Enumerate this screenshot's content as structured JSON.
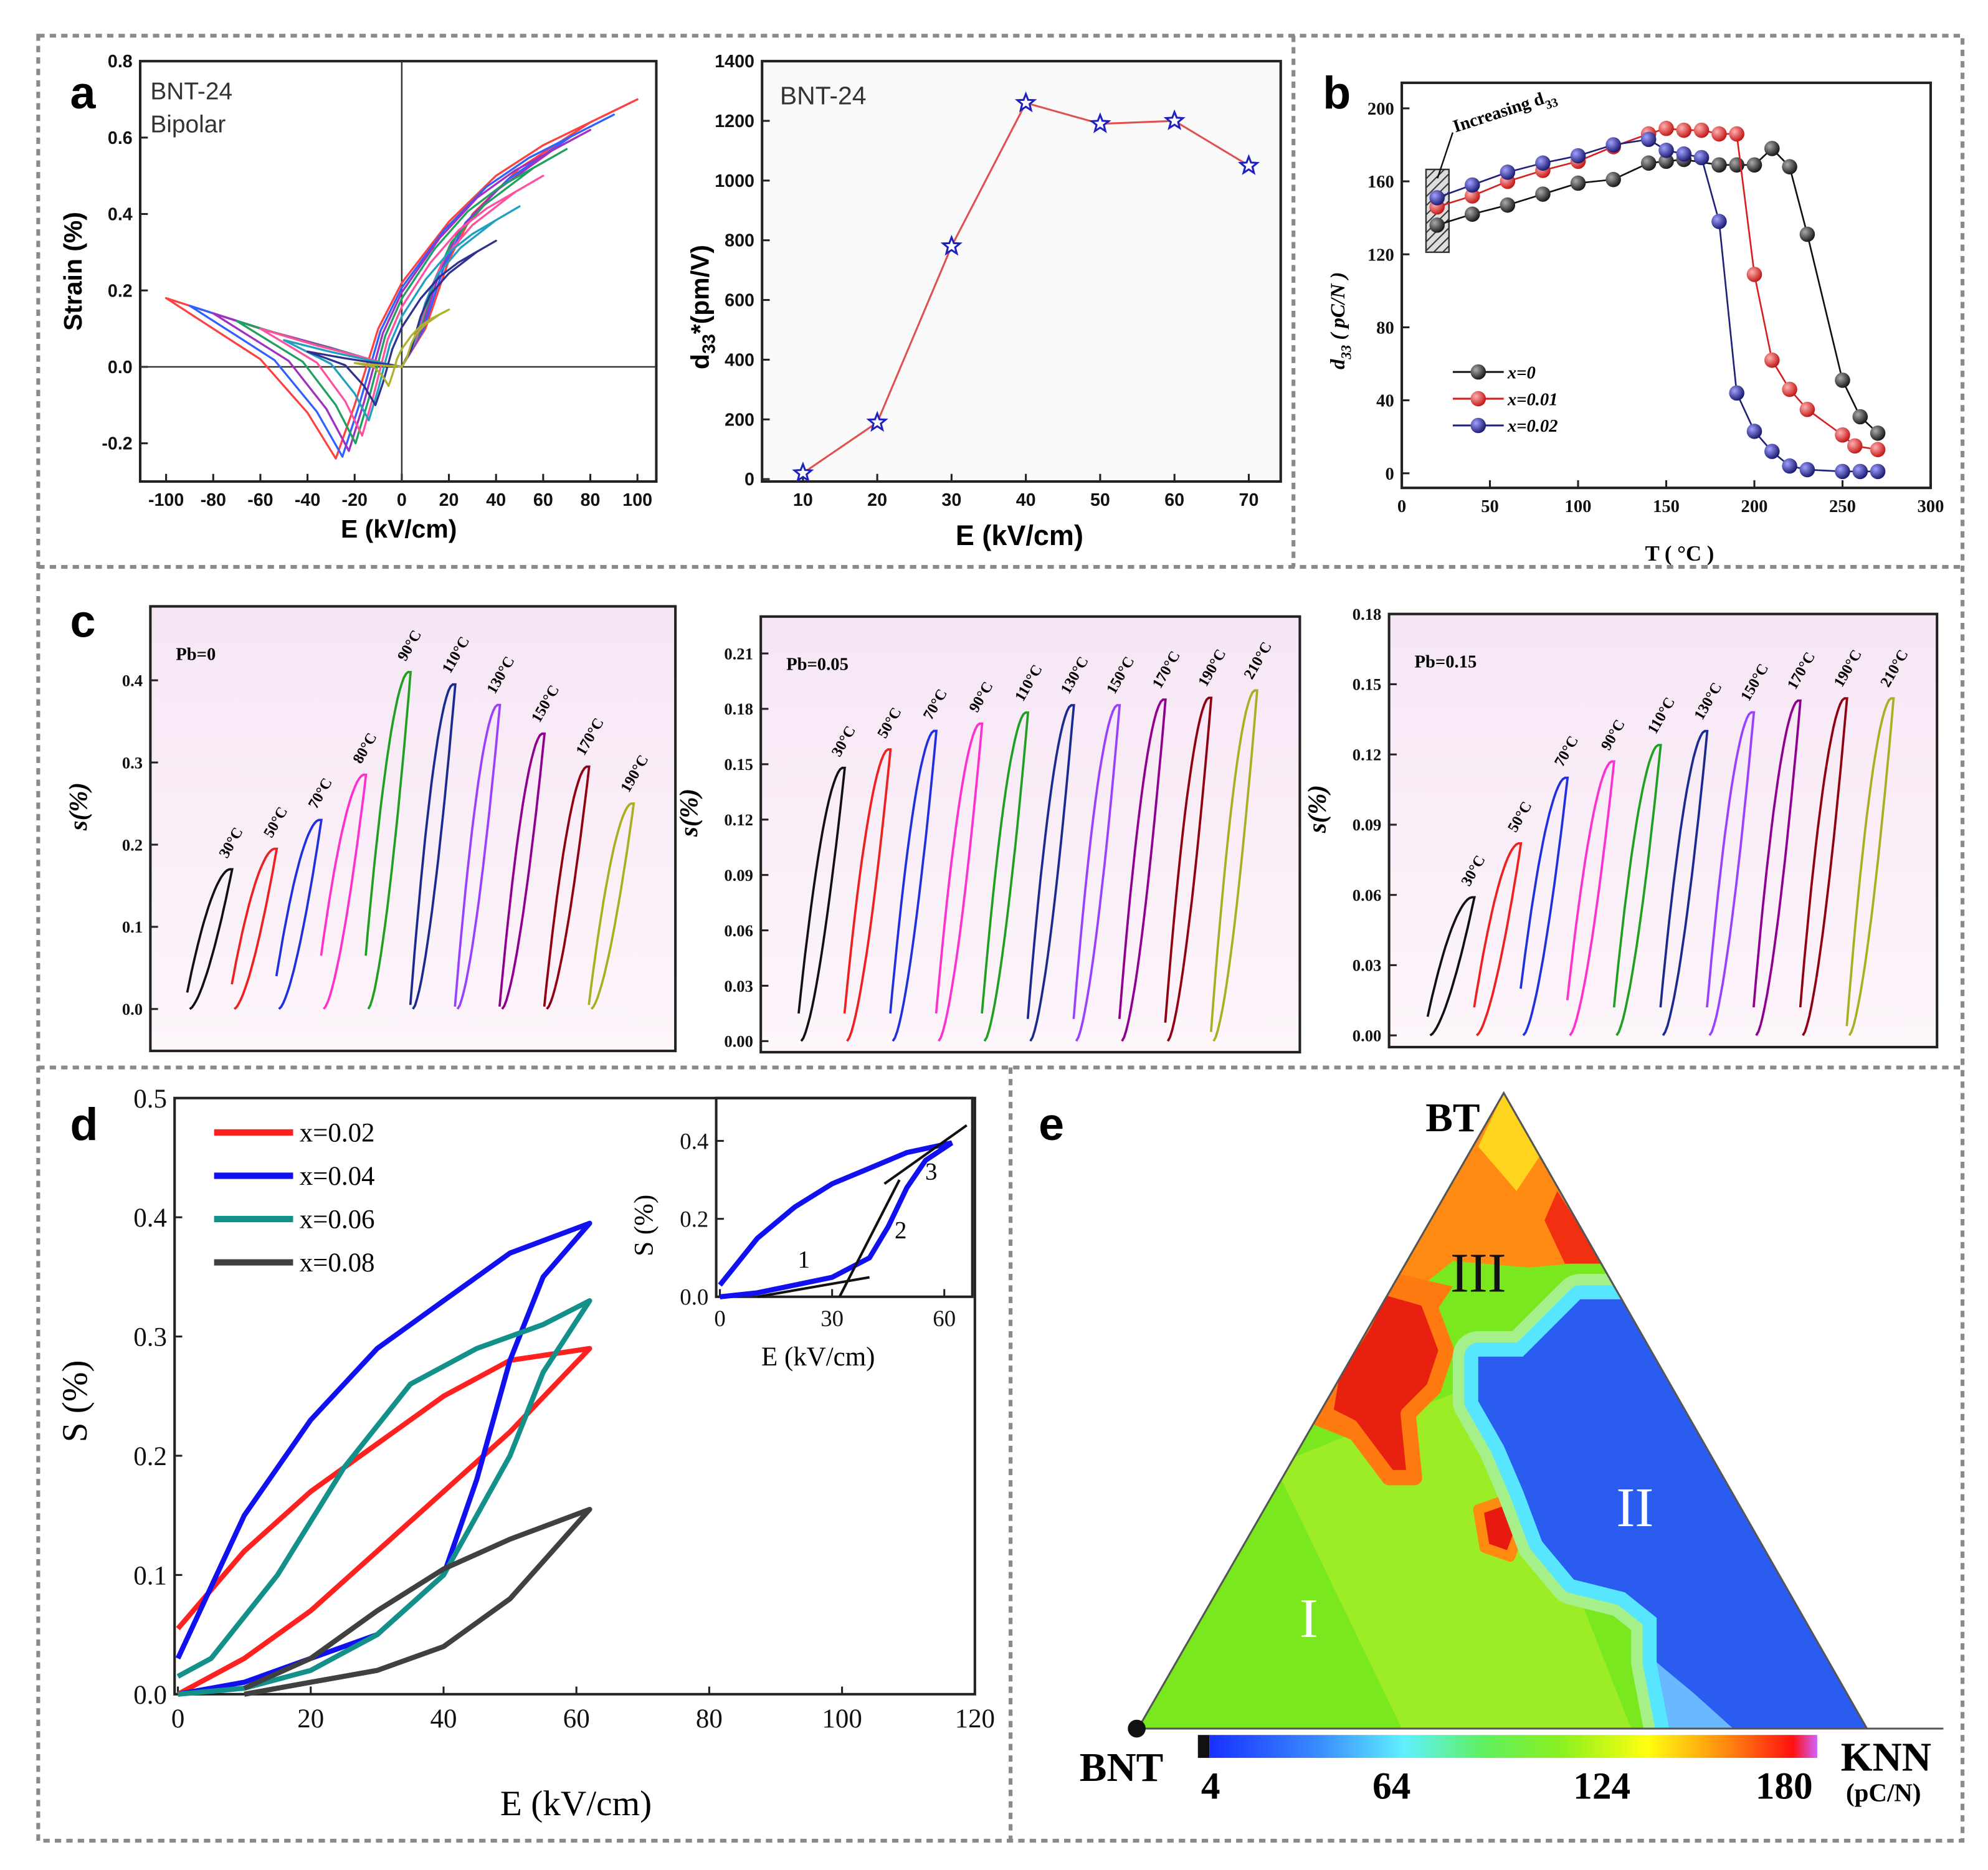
{
  "panel_letters": [
    "a",
    "b",
    "c",
    "d",
    "e"
  ],
  "colors": {
    "border": "#8a8a8a",
    "frame": "#222222"
  },
  "chart_data": [
    {
      "id": "a1",
      "panel": "a",
      "type": "line",
      "annotations": [
        "BNT-24",
        "Bipolar"
      ],
      "xlabel": "E (kV/cm)",
      "ylabel": "Strain (%)",
      "xlim": [
        -111,
        108
      ],
      "ylim": [
        -0.3,
        0.8
      ],
      "xticks": [
        -100,
        -80,
        -60,
        -40,
        -20,
        0,
        20,
        40,
        60,
        80,
        100
      ],
      "yticks": [
        -0.2,
        0.0,
        0.2,
        0.4,
        0.6,
        0.8
      ],
      "ytick_labels": [
        "-0.2",
        "0.0",
        "0.2",
        "0.4",
        "0.6",
        "0.8"
      ],
      "series": [
        {
          "Emax": 100,
          "Spos": 0.7,
          "Sneg": 0.18,
          "Smin": -0.24,
          "color": "#ff4040"
        },
        {
          "Emax": 90,
          "Spos": 0.66,
          "Sneg": 0.16,
          "Smin": -0.235,
          "color": "#3060ff"
        },
        {
          "Emax": 80,
          "Spos": 0.62,
          "Sneg": 0.14,
          "Smin": -0.22,
          "color": "#a030c0"
        },
        {
          "Emax": 70,
          "Spos": 0.57,
          "Sneg": 0.12,
          "Smin": -0.2,
          "color": "#20a060"
        },
        {
          "Emax": 60,
          "Spos": 0.5,
          "Sneg": 0.1,
          "Smin": -0.18,
          "color": "#ff50a0"
        },
        {
          "Emax": 50,
          "Spos": 0.42,
          "Sneg": 0.07,
          "Smin": -0.14,
          "color": "#20a0c0"
        },
        {
          "Emax": 40,
          "Spos": 0.33,
          "Sneg": 0.04,
          "Smin": -0.1,
          "color": "#303090"
        },
        {
          "Emax": 20,
          "Spos": 0.15,
          "Sneg": 0.01,
          "Smin": -0.05,
          "color": "#b0b030"
        }
      ]
    },
    {
      "id": "a2",
      "panel": "a",
      "type": "line",
      "annotations": [
        "BNT-24"
      ],
      "xlabel": "E (kV/cm)",
      "ylabel": {
        "main": "d",
        "sub": "33",
        "rest": "*(pm/V)"
      },
      "xlim": [
        4.5,
        74.3
      ],
      "ylim": [
        -8,
        1400
      ],
      "xticks": [
        10,
        20,
        30,
        40,
        50,
        60,
        70
      ],
      "yticks": [
        0,
        200,
        400,
        600,
        800,
        1000,
        1200,
        1400
      ],
      "x": [
        10,
        20,
        30,
        40,
        50,
        60,
        70
      ],
      "y": [
        20,
        190,
        780,
        1260,
        1190,
        1200,
        1050
      ],
      "line_color": "#e05050",
      "marker_color": "#2020c0"
    },
    {
      "id": "b",
      "panel": "b",
      "type": "line",
      "annotations": [
        {
          "main": "Increasing d",
          "sub": "33"
        }
      ],
      "xlabel": "T ( °C )",
      "ylabel": {
        "main": "d",
        "sub": "33",
        "rest": " ( pC/N )"
      },
      "xlim": [
        0,
        300
      ],
      "ylim": [
        -8,
        214
      ],
      "xticks": [
        0,
        50,
        100,
        150,
        200,
        250,
        300
      ],
      "yticks": [
        0,
        40,
        80,
        120,
        160,
        200
      ],
      "series": [
        {
          "name": "x=0",
          "color": "#111111",
          "x": [
            20,
            40,
            60,
            80,
            100,
            120,
            140,
            150,
            160,
            180,
            190,
            200,
            210,
            220,
            230,
            250,
            260,
            270
          ],
          "y": [
            136,
            142,
            147,
            153,
            159,
            161,
            170,
            171,
            172,
            169,
            169,
            169,
            178,
            168,
            131,
            51,
            31,
            22
          ]
        },
        {
          "name": "x=0.01",
          "color": "#d42020",
          "x": [
            20,
            40,
            60,
            80,
            100,
            120,
            140,
            150,
            160,
            170,
            180,
            190,
            200,
            210,
            220,
            230,
            250,
            257,
            270
          ],
          "y": [
            146,
            152,
            160,
            166,
            171,
            179,
            186,
            189,
            188,
            188,
            186,
            186,
            109,
            62,
            46,
            35,
            21,
            15,
            13
          ]
        },
        {
          "name": "x=0.02",
          "color": "#20207a",
          "x": [
            20,
            40,
            60,
            80,
            100,
            120,
            140,
            150,
            160,
            170,
            180,
            190,
            200,
            210,
            220,
            230,
            250,
            260,
            270
          ],
          "y": [
            151,
            158,
            165,
            170,
            174,
            180,
            183,
            177,
            175,
            173,
            138,
            44,
            23,
            12,
            4,
            2,
            1,
            1,
            1
          ]
        }
      ]
    },
    {
      "id": "c1",
      "panel": "c",
      "type": "line",
      "label": "Pb=0",
      "ylabel": "s(%)",
      "ylim": [
        -0.051,
        0.49
      ],
      "yticks": [
        0.0,
        0.1,
        0.2,
        0.3,
        0.4
      ],
      "ytick_labels": [
        "0.0",
        "0.1",
        "0.2",
        "0.3",
        "0.4"
      ],
      "loops": [
        {
          "label": "30°C",
          "peak": 0.17,
          "return_strain": 0.02,
          "color": "#111111"
        },
        {
          "label": "50°C",
          "peak": 0.195,
          "return_strain": 0.03,
          "color": "#ee2020"
        },
        {
          "label": "70°C",
          "peak": 0.23,
          "return_strain": 0.04,
          "color": "#2030e0"
        },
        {
          "label": "80°C",
          "peak": 0.285,
          "return_strain": 0.065,
          "color": "#ff30d0"
        },
        {
          "label": "90°C",
          "peak": 0.41,
          "return_strain": 0.065,
          "color": "#20a020"
        },
        {
          "label": "110°C",
          "peak": 0.395,
          "return_strain": 0.005,
          "color": "#1a2a90"
        },
        {
          "label": "130°C",
          "peak": 0.37,
          "return_strain": 0.003,
          "color": "#9a40ff"
        },
        {
          "label": "150°C",
          "peak": 0.335,
          "return_strain": 0.003,
          "color": "#900090"
        },
        {
          "label": "170°C",
          "peak": 0.295,
          "return_strain": 0.003,
          "color": "#900010"
        },
        {
          "label": "190°C",
          "peak": 0.25,
          "return_strain": 0.005,
          "color": "#a8b020"
        }
      ]
    },
    {
      "id": "c2",
      "panel": "c",
      "type": "line",
      "label": "Pb=0.05",
      "ylabel": "s(%)",
      "ylim": [
        -0.006,
        0.23
      ],
      "yticks": [
        0.0,
        0.03,
        0.06,
        0.09,
        0.12,
        0.15,
        0.18,
        0.21
      ],
      "ytick_labels": [
        "0.00",
        "0.03",
        "0.06",
        "0.09",
        "0.12",
        "0.15",
        "0.18",
        "0.21"
      ],
      "loops": [
        {
          "label": "30°C",
          "peak": 0.148,
          "return_strain": 0.015,
          "color": "#111111"
        },
        {
          "label": "50°C",
          "peak": 0.158,
          "return_strain": 0.015,
          "color": "#ee2020"
        },
        {
          "label": "70°C",
          "peak": 0.168,
          "return_strain": 0.015,
          "color": "#2030e0"
        },
        {
          "label": "90°C",
          "peak": 0.172,
          "return_strain": 0.015,
          "color": "#ff30d0"
        },
        {
          "label": "110°C",
          "peak": 0.178,
          "return_strain": 0.015,
          "color": "#20a020"
        },
        {
          "label": "130°C",
          "peak": 0.182,
          "return_strain": 0.012,
          "color": "#1a2a90"
        },
        {
          "label": "150°C",
          "peak": 0.182,
          "return_strain": 0.012,
          "color": "#9a40ff"
        },
        {
          "label": "170°C",
          "peak": 0.185,
          "return_strain": 0.012,
          "color": "#900090"
        },
        {
          "label": "190°C",
          "peak": 0.186,
          "return_strain": 0.01,
          "color": "#900010"
        },
        {
          "label": "210°C",
          "peak": 0.19,
          "return_strain": 0.005,
          "color": "#a8b020"
        }
      ]
    },
    {
      "id": "c3",
      "panel": "c",
      "type": "line",
      "label": "Pb=0.15",
      "ylabel": "s(%)",
      "ylim": [
        -0.005,
        0.18
      ],
      "yticks": [
        0.0,
        0.03,
        0.06,
        0.09,
        0.12,
        0.15,
        0.18
      ],
      "ytick_labels": [
        "0.00",
        "0.03",
        "0.06",
        "0.09",
        "0.12",
        "0.15",
        "0.18"
      ],
      "loops": [
        {
          "label": "30°C",
          "peak": 0.059,
          "return_strain": 0.008,
          "color": "#111111"
        },
        {
          "label": "50°C",
          "peak": 0.082,
          "return_strain": 0.012,
          "color": "#ee2020"
        },
        {
          "label": "70°C",
          "peak": 0.11,
          "return_strain": 0.02,
          "color": "#2030e0"
        },
        {
          "label": "90°C",
          "peak": 0.117,
          "return_strain": 0.015,
          "color": "#ff30d0"
        },
        {
          "label": "110°C",
          "peak": 0.124,
          "return_strain": 0.012,
          "color": "#20a020"
        },
        {
          "label": "130°C",
          "peak": 0.13,
          "return_strain": 0.012,
          "color": "#1a2a90"
        },
        {
          "label": "150°C",
          "peak": 0.138,
          "return_strain": 0.012,
          "color": "#9a40ff"
        },
        {
          "label": "170°C",
          "peak": 0.143,
          "return_strain": 0.012,
          "color": "#900090"
        },
        {
          "label": "190°C",
          "peak": 0.144,
          "return_strain": 0.012,
          "color": "#900010"
        },
        {
          "label": "210°C",
          "peak": 0.144,
          "return_strain": 0.004,
          "color": "#a8b020"
        }
      ]
    },
    {
      "id": "d",
      "panel": "d",
      "type": "line",
      "xlabel": "E (kV/cm)",
      "ylabel": "S (%)",
      "xlim": [
        -0.5,
        120
      ],
      "ylim": [
        0,
        0.5
      ],
      "xticks": [
        0,
        20,
        40,
        60,
        80,
        100,
        120
      ],
      "yticks": [
        0,
        0.1,
        0.2,
        0.3,
        0.4,
        0.5
      ],
      "ytick_labels": [
        "0.0",
        "0.1",
        "0.2",
        "0.3",
        "0.4",
        "0.5"
      ],
      "series": [
        {
          "name": "x=0.02",
          "color": "#ff2020",
          "upper": [
            [
              62,
              0.29
            ],
            [
              50,
              0.28
            ],
            [
              40,
              0.25
            ],
            [
              30,
              0.21
            ],
            [
              20,
              0.17
            ],
            [
              10,
              0.12
            ],
            [
              0,
              0.055
            ]
          ],
          "lower": [
            [
              0,
              0.0
            ],
            [
              10,
              0.03
            ],
            [
              20,
              0.07
            ],
            [
              30,
              0.12
            ],
            [
              40,
              0.17
            ],
            [
              50,
              0.22
            ],
            [
              62,
              0.29
            ]
          ]
        },
        {
          "name": "x=0.04",
          "color": "#1010f0",
          "upper": [
            [
              62,
              0.395
            ],
            [
              50,
              0.37
            ],
            [
              40,
              0.33
            ],
            [
              30,
              0.29
            ],
            [
              20,
              0.23
            ],
            [
              10,
              0.15
            ],
            [
              0,
              0.03
            ]
          ],
          "lower": [
            [
              0,
              0.0
            ],
            [
              10,
              0.01
            ],
            [
              20,
              0.03
            ],
            [
              30,
              0.05
            ],
            [
              40,
              0.1
            ],
            [
              45,
              0.18
            ],
            [
              50,
              0.28
            ],
            [
              55,
              0.35
            ],
            [
              62,
              0.395
            ]
          ]
        },
        {
          "name": "x=0.06",
          "color": "#14908a",
          "upper": [
            [
              62,
              0.33
            ],
            [
              55,
              0.31
            ],
            [
              45,
              0.29
            ],
            [
              35,
              0.26
            ],
            [
              25,
              0.19
            ],
            [
              15,
              0.1
            ],
            [
              5,
              0.03
            ],
            [
              0,
              0.015
            ]
          ],
          "lower": [
            [
              0,
              0.0
            ],
            [
              10,
              0.005
            ],
            [
              20,
              0.02
            ],
            [
              30,
              0.05
            ],
            [
              40,
              0.1
            ],
            [
              50,
              0.2
            ],
            [
              55,
              0.27
            ],
            [
              62,
              0.33
            ]
          ]
        },
        {
          "name": "x=0.08",
          "color": "#404040",
          "upper": [
            [
              62,
              0.155
            ],
            [
              50,
              0.13
            ],
            [
              40,
              0.105
            ],
            [
              30,
              0.07
            ],
            [
              20,
              0.03
            ],
            [
              10,
              0.005
            ]
          ],
          "lower": [
            [
              10,
              0.0
            ],
            [
              20,
              0.01
            ],
            [
              30,
              0.02
            ],
            [
              40,
              0.04
            ],
            [
              50,
              0.08
            ],
            [
              62,
              0.155
            ]
          ]
        }
      ],
      "inset": {
        "xlabel": "E (kV/cm)",
        "ylabel": "S (%)",
        "xlim": [
          -1,
          67.5
        ],
        "ylim": [
          0,
          0.51
        ],
        "xticks": [
          0,
          30,
          60
        ],
        "yticks": [
          0,
          0.2,
          0.4
        ],
        "ytick_labels": [
          "0.0",
          "0.2",
          "0.4"
        ],
        "region_labels": [
          "1",
          "2",
          "3"
        ],
        "tangents": [
          [
            [
              10,
              0.0
            ],
            [
              40,
              0.05
            ]
          ],
          [
            [
              32,
              0.0
            ],
            [
              48,
              0.3
            ]
          ],
          [
            [
              44,
              0.29
            ],
            [
              66,
              0.44
            ]
          ]
        ]
      }
    },
    {
      "id": "e",
      "panel": "e",
      "type": "heatmap",
      "subtype": "ternary-contour",
      "vertices": [
        "BNT",
        "BT",
        "KNN"
      ],
      "regions": [
        "I",
        "II",
        "III"
      ],
      "colorbar": {
        "ticks": [
          "4",
          "64",
          "124",
          "180"
        ],
        "unit": "(pC/N)",
        "range": [
          4,
          180
        ]
      }
    }
  ]
}
